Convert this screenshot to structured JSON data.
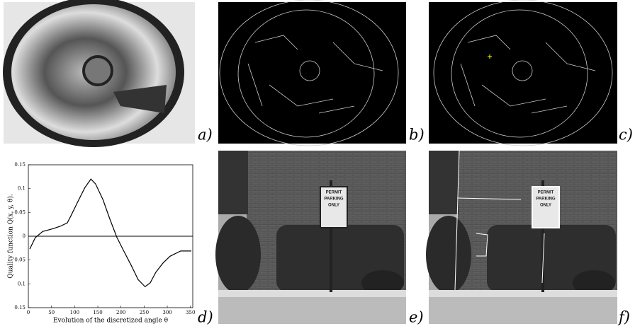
{
  "panels": [
    {
      "label": "a)"
    },
    {
      "label": "b)"
    },
    {
      "label": "c)"
    },
    {
      "label": "d)"
    },
    {
      "label": "e)"
    },
    {
      "label": "f)"
    }
  ],
  "sign": [
    "PERMIT",
    "PARKING",
    "ONLY"
  ],
  "chart_data": {
    "type": "line",
    "xlabel": "Evolution of the discretized angle θ",
    "ylabel": "Quality function  Q(x, y, θ).",
    "x": [
      3,
      15,
      31,
      54,
      69,
      84,
      92,
      107,
      122,
      135,
      145,
      161,
      176,
      191,
      206,
      222,
      237,
      252,
      263,
      275,
      291,
      306,
      329,
      352
    ],
    "values": [
      -0.027,
      -0.003,
      0.01,
      0.016,
      0.021,
      0.028,
      0.043,
      0.073,
      0.102,
      0.12,
      0.11,
      0.077,
      0.036,
      -0.002,
      -0.031,
      -0.061,
      -0.091,
      -0.106,
      -0.098,
      -0.076,
      -0.056,
      -0.042,
      -0.031,
      -0.031
    ],
    "color": "#000000",
    "xlim": [
      0,
      355
    ],
    "xticks": [
      0,
      50,
      100,
      150,
      200,
      250,
      300,
      350
    ],
    "ylim": [
      -0.15,
      0.15
    ],
    "yticks": [
      {
        "value": -0.15,
        "label": "0.15"
      },
      {
        "value": -0.1,
        "label": "0.1"
      },
      {
        "value": -0.05,
        "label": "0.05"
      },
      0,
      0.05,
      0.1,
      0.15
    ]
  }
}
